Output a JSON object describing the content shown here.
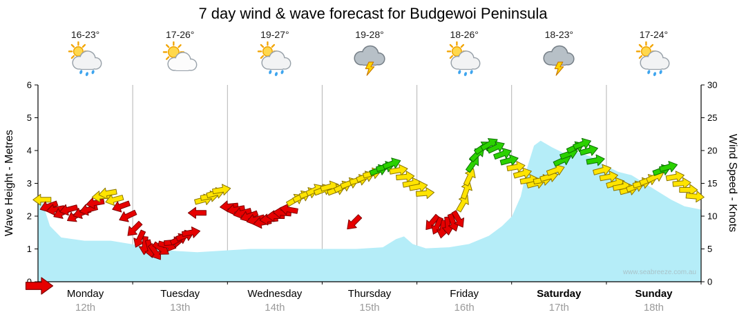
{
  "page": {
    "title": "7 day wind & wave forecast for Budgewoi Peninsula",
    "watermark": "www.seabreeze.com.au"
  },
  "axes": {
    "left_label": "Wave Height - Metres",
    "right_label": "Wind Speed - Knots"
  },
  "days": [
    {
      "name": "Monday",
      "date": "12th",
      "temp": "16-23°",
      "icon": "sun-cloud-rain",
      "bold": false
    },
    {
      "name": "Tuesday",
      "date": "13th",
      "temp": "17-26°",
      "icon": "sun-cloud",
      "bold": false
    },
    {
      "name": "Wednesday",
      "date": "14th",
      "temp": "19-27°",
      "icon": "sun-cloud-rain",
      "bold": false
    },
    {
      "name": "Thursday",
      "date": "15th",
      "temp": "19-28°",
      "icon": "storm",
      "bold": false
    },
    {
      "name": "Friday",
      "date": "16th",
      "temp": "18-26°",
      "icon": "sun-cloud-rain",
      "bold": false
    },
    {
      "name": "Saturday",
      "date": "17th",
      "temp": "18-23°",
      "icon": "storm",
      "bold": true
    },
    {
      "name": "Sunday",
      "date": "18th",
      "temp": "17-24°",
      "icon": "sun-cloud-rain",
      "bold": true
    }
  ],
  "chart_data": {
    "type": "area",
    "title": "7 day wind & wave forecast for Budgewoi Peninsula",
    "x_domain": "fraction of the 7-day window; 0 = start of Monday 12th, 1 = end of Sunday 18th",
    "x_day_labels": [
      "Monday 12th",
      "Tuesday 13th",
      "Wednesday 14th",
      "Thursday 15th",
      "Friday 16th",
      "Saturday 17th",
      "Sunday 18th"
    ],
    "left_axis": {
      "label": "Wave Height - Metres",
      "range": [
        0,
        6
      ],
      "ticks": [
        0,
        1,
        2,
        3,
        4,
        5,
        6
      ]
    },
    "right_axis": {
      "label": "Wind Speed - Knots",
      "range": [
        0,
        30
      ],
      "ticks": [
        0,
        5,
        10,
        15,
        20,
        25,
        30
      ]
    },
    "wave_height_m": [
      [
        0.0,
        2.45
      ],
      [
        0.006,
        2.45
      ],
      [
        0.018,
        1.7
      ],
      [
        0.035,
        1.35
      ],
      [
        0.07,
        1.25
      ],
      [
        0.11,
        1.25
      ],
      [
        0.14,
        1.15
      ],
      [
        0.17,
        1.05
      ],
      [
        0.2,
        0.95
      ],
      [
        0.24,
        0.9
      ],
      [
        0.28,
        0.95
      ],
      [
        0.32,
        1.0
      ],
      [
        0.36,
        1.0
      ],
      [
        0.4,
        1.0
      ],
      [
        0.44,
        1.0
      ],
      [
        0.48,
        1.0
      ],
      [
        0.52,
        1.05
      ],
      [
        0.54,
        1.3
      ],
      [
        0.552,
        1.38
      ],
      [
        0.565,
        1.15
      ],
      [
        0.585,
        1.02
      ],
      [
        0.62,
        1.05
      ],
      [
        0.65,
        1.15
      ],
      [
        0.68,
        1.4
      ],
      [
        0.7,
        1.7
      ],
      [
        0.715,
        2.0
      ],
      [
        0.728,
        2.6
      ],
      [
        0.738,
        3.5
      ],
      [
        0.748,
        4.15
      ],
      [
        0.758,
        4.3
      ],
      [
        0.775,
        4.1
      ],
      [
        0.795,
        3.9
      ],
      [
        0.815,
        3.95
      ],
      [
        0.835,
        3.8
      ],
      [
        0.855,
        3.55
      ],
      [
        0.875,
        3.35
      ],
      [
        0.895,
        3.25
      ],
      [
        0.915,
        3.0
      ],
      [
        0.935,
        2.75
      ],
      [
        0.955,
        2.5
      ],
      [
        0.975,
        2.3
      ],
      [
        1.0,
        2.2
      ]
    ],
    "wind_arrows": {
      "format": "[x_fraction, speed_knots, direction_deg (0=pointing right/E, 90=up/N, CCW), color r|y|g]",
      "values": [
        [
          0.006,
          12.5,
          180,
          "y"
        ],
        [
          0.016,
          11.5,
          200,
          "r"
        ],
        [
          0.026,
          11,
          190,
          "r"
        ],
        [
          0.036,
          10.5,
          205,
          "r"
        ],
        [
          0.046,
          11,
          195,
          "r"
        ],
        [
          0.056,
          10,
          210,
          "r"
        ],
        [
          0.066,
          10.5,
          200,
          "r"
        ],
        [
          0.076,
          11,
          195,
          "r"
        ],
        [
          0.086,
          12,
          190,
          "r"
        ],
        [
          0.095,
          13,
          185,
          "y"
        ],
        [
          0.105,
          13.5,
          190,
          "y"
        ],
        [
          0.115,
          12.5,
          195,
          "y"
        ],
        [
          0.125,
          11.5,
          200,
          "r"
        ],
        [
          0.135,
          10,
          205,
          "r"
        ],
        [
          0.145,
          8,
          225,
          "r"
        ],
        [
          0.153,
          6.5,
          245,
          "r"
        ],
        [
          0.161,
          5.5,
          265,
          "r"
        ],
        [
          0.169,
          5,
          285,
          "r"
        ],
        [
          0.177,
          4.5,
          305,
          "r"
        ],
        [
          0.186,
          5,
          325,
          "r"
        ],
        [
          0.195,
          5.5,
          345,
          "r"
        ],
        [
          0.204,
          6,
          5,
          "r"
        ],
        [
          0.213,
          6.5,
          25,
          "r"
        ],
        [
          0.222,
          7,
          20,
          "r"
        ],
        [
          0.231,
          7.5,
          10,
          "r"
        ],
        [
          0.24,
          10.5,
          180,
          "r"
        ],
        [
          0.25,
          12.5,
          15,
          "y"
        ],
        [
          0.259,
          13,
          10,
          "y"
        ],
        [
          0.268,
          13.5,
          15,
          "y"
        ],
        [
          0.277,
          14,
          10,
          "y"
        ],
        [
          0.288,
          11.5,
          185,
          "r"
        ],
        [
          0.298,
          11,
          190,
          "r"
        ],
        [
          0.308,
          10.5,
          195,
          "r"
        ],
        [
          0.318,
          10,
          200,
          "r"
        ],
        [
          0.328,
          9.5,
          195,
          "r"
        ],
        [
          0.338,
          9,
          190,
          "r"
        ],
        [
          0.348,
          9.5,
          185,
          "r"
        ],
        [
          0.358,
          10,
          180,
          "r"
        ],
        [
          0.368,
          10.5,
          175,
          "r"
        ],
        [
          0.378,
          11,
          170,
          "r"
        ],
        [
          0.388,
          12.5,
          30,
          "y"
        ],
        [
          0.398,
          13,
          25,
          "y"
        ],
        [
          0.408,
          13.5,
          20,
          "y"
        ],
        [
          0.418,
          14,
          25,
          "y"
        ],
        [
          0.43,
          14,
          20,
          "y"
        ],
        [
          0.44,
          14.5,
          15,
          "y"
        ],
        [
          0.45,
          14,
          20,
          "y"
        ],
        [
          0.46,
          14.5,
          25,
          "y"
        ],
        [
          0.47,
          15,
          20,
          "y"
        ],
        [
          0.476,
          9,
          225,
          "r"
        ],
        [
          0.484,
          15.5,
          15,
          "y"
        ],
        [
          0.494,
          16,
          20,
          "y"
        ],
        [
          0.504,
          16.5,
          15,
          "y"
        ],
        [
          0.514,
          17,
          20,
          "g"
        ],
        [
          0.524,
          17.5,
          15,
          "g"
        ],
        [
          0.534,
          18,
          20,
          "g"
        ],
        [
          0.544,
          17,
          10,
          "y"
        ],
        [
          0.554,
          16,
          5,
          "y"
        ],
        [
          0.564,
          15,
          10,
          "y"
        ],
        [
          0.574,
          14.5,
          10,
          "y"
        ],
        [
          0.584,
          13.5,
          5,
          "y"
        ],
        [
          0.594,
          9,
          230,
          "r"
        ],
        [
          0.602,
          8.5,
          245,
          "r"
        ],
        [
          0.61,
          8,
          260,
          "r"
        ],
        [
          0.618,
          8.5,
          275,
          "r"
        ],
        [
          0.626,
          9,
          290,
          "r"
        ],
        [
          0.634,
          9.5,
          300,
          "r"
        ],
        [
          0.641,
          12,
          60,
          "y"
        ],
        [
          0.646,
          14,
          70,
          "y"
        ],
        [
          0.651,
          16,
          65,
          "y"
        ],
        [
          0.656,
          18,
          55,
          "g"
        ],
        [
          0.663,
          19.5,
          45,
          "g"
        ],
        [
          0.671,
          20.5,
          35,
          "g"
        ],
        [
          0.681,
          21,
          30,
          "g"
        ],
        [
          0.691,
          20.5,
          25,
          "g"
        ],
        [
          0.701,
          19.5,
          20,
          "g"
        ],
        [
          0.711,
          18.5,
          15,
          "g"
        ],
        [
          0.721,
          17.5,
          10,
          "y"
        ],
        [
          0.731,
          16.5,
          15,
          "y"
        ],
        [
          0.741,
          15.5,
          10,
          "y"
        ],
        [
          0.751,
          15,
          15,
          "y"
        ],
        [
          0.761,
          15.5,
          10,
          "y"
        ],
        [
          0.771,
          16,
          15,
          "y"
        ],
        [
          0.781,
          17,
          20,
          "y"
        ],
        [
          0.791,
          18.5,
          25,
          "g"
        ],
        [
          0.801,
          19.5,
          20,
          "g"
        ],
        [
          0.811,
          20.5,
          25,
          "g"
        ],
        [
          0.821,
          21,
          20,
          "g"
        ],
        [
          0.831,
          20,
          15,
          "g"
        ],
        [
          0.841,
          18.5,
          10,
          "g"
        ],
        [
          0.851,
          17,
          15,
          "y"
        ],
        [
          0.861,
          16,
          10,
          "y"
        ],
        [
          0.871,
          15,
          15,
          "y"
        ],
        [
          0.881,
          14.5,
          10,
          "y"
        ],
        [
          0.891,
          14,
          15,
          "y"
        ],
        [
          0.901,
          14.5,
          20,
          "y"
        ],
        [
          0.911,
          15,
          15,
          "y"
        ],
        [
          0.921,
          15.5,
          20,
          "y"
        ],
        [
          0.931,
          16,
          25,
          "y"
        ],
        [
          0.941,
          17,
          20,
          "g"
        ],
        [
          0.951,
          17.5,
          15,
          "g"
        ],
        [
          0.961,
          16,
          10,
          "y"
        ],
        [
          0.971,
          15,
          5,
          "y"
        ],
        [
          0.981,
          14,
          0,
          "y"
        ],
        [
          0.991,
          13,
          355,
          "y"
        ]
      ]
    },
    "now_arrow": {
      "x": 0,
      "knots": 0,
      "direction_deg": 0,
      "color": "r"
    },
    "colors": {
      "r": "#E60000",
      "y": "#FFE400",
      "g": "#2BD100",
      "wave_fill": "#B5EDF8",
      "color_meaning": "arrow colour by wind strength: red = lighter winds, yellow = moderate, green = stronger"
    }
  }
}
